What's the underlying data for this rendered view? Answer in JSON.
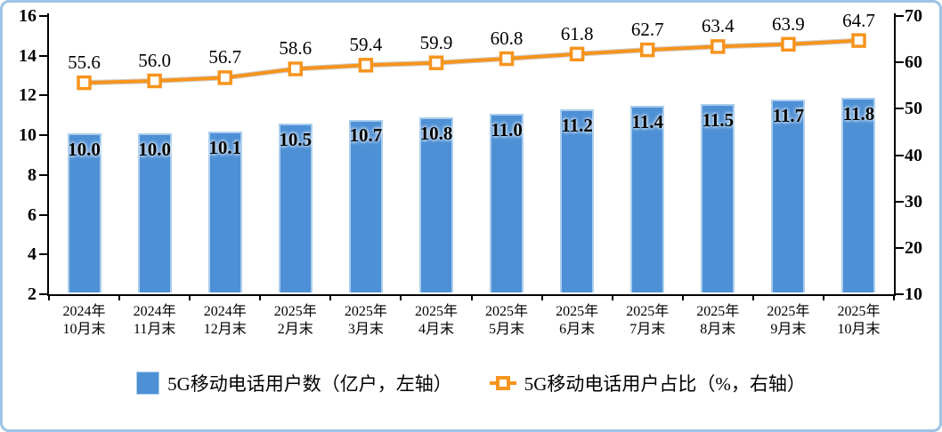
{
  "chart_data": {
    "type": "bar+line combo",
    "categories": [
      [
        "2024年",
        "10月末"
      ],
      [
        "2024年",
        "11月末"
      ],
      [
        "2024年",
        "12月末"
      ],
      [
        "2025年",
        "2月末"
      ],
      [
        "2025年",
        "3月末"
      ],
      [
        "2025年",
        "4月末"
      ],
      [
        "2025年",
        "5月末"
      ],
      [
        "2025年",
        "6月末"
      ],
      [
        "2025年",
        "7月末"
      ],
      [
        "2025年",
        "8月末"
      ],
      [
        "2025年",
        "9月末"
      ],
      [
        "2025年",
        "10月末"
      ]
    ],
    "series": [
      {
        "name": "5G移动电话用户数（亿户，左轴）",
        "type": "bar",
        "axis": "left",
        "values": [
          10.0,
          10.0,
          10.1,
          10.5,
          10.7,
          10.8,
          11.0,
          11.2,
          11.4,
          11.5,
          11.7,
          11.8
        ],
        "labels": [
          "10.0",
          "10.0",
          "10.1",
          "10.5",
          "10.7",
          "10.8",
          "11.0",
          "11.2",
          "11.4",
          "11.5",
          "11.7",
          "11.8"
        ]
      },
      {
        "name": "5G移动电话用户占比（%，右轴）",
        "type": "line",
        "axis": "right",
        "values": [
          55.6,
          56.0,
          56.7,
          58.6,
          59.4,
          59.9,
          60.8,
          61.8,
          62.7,
          63.4,
          63.9,
          64.7
        ],
        "labels": [
          "55.6",
          "56.0",
          "56.7",
          "58.6",
          "59.4",
          "59.9",
          "60.8",
          "61.8",
          "62.7",
          "63.4",
          "63.9",
          "64.7"
        ]
      }
    ],
    "left_axis": {
      "min": 2,
      "max": 16,
      "step": 2,
      "tick_labels": [
        "16",
        "14",
        "12",
        "10",
        "8",
        "6",
        "4",
        "2"
      ]
    },
    "right_axis": {
      "min": 10,
      "max": 70,
      "step": 10,
      "tick_labels": [
        "70",
        "60",
        "50",
        "40",
        "30",
        "20",
        "10"
      ]
    },
    "title": "",
    "grid": false,
    "legend_position": "bottom-center"
  },
  "colors": {
    "bar_fill": "#4e90d5",
    "bar_border": "#a9cded",
    "line": "#f7941d",
    "line_shadow": "#a6a6a6",
    "marker_fill": "#ffffff",
    "axis": "#000000",
    "frame_border": "#9dc3e5",
    "background": "#ffffff",
    "text": "#000000"
  }
}
